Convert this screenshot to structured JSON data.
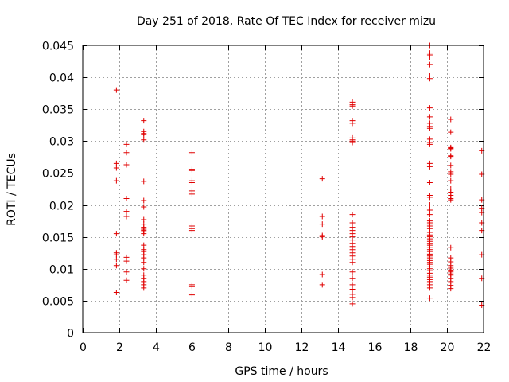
{
  "chart_data": {
    "type": "scatter",
    "title": "Day 251 of 2018, Rate Of TEC Index for receiver mizu",
    "xlabel": "GPS time / hours",
    "ylabel": "ROTI / TECUs",
    "xlim": [
      0,
      22
    ],
    "ylim": [
      0,
      0.045
    ],
    "xticks": [
      0,
      2,
      4,
      6,
      8,
      10,
      12,
      14,
      16,
      18,
      20,
      22
    ],
    "yticks": [
      0,
      0.005,
      0.01,
      0.015,
      0.02,
      0.025,
      0.03,
      0.035,
      0.04,
      0.045
    ],
    "xtick_labels": [
      "0",
      "2",
      "4",
      "6",
      "8",
      "10",
      "12",
      "14",
      "16",
      "18",
      "20",
      "22"
    ],
    "ytick_labels": [
      "0",
      "0.005",
      "0.01",
      "0.015",
      "0.02",
      "0.025",
      "0.03",
      "0.035",
      "0.04",
      "0.045"
    ],
    "grid": true,
    "marker": "plus",
    "color": "#e00000",
    "series": [
      {
        "name": "ROTI",
        "points": [
          [
            1.85,
            0.038
          ],
          [
            1.85,
            0.0265
          ],
          [
            1.85,
            0.0258
          ],
          [
            1.85,
            0.0238
          ],
          [
            1.85,
            0.0155
          ],
          [
            1.85,
            0.0125
          ],
          [
            1.85,
            0.0122
          ],
          [
            1.85,
            0.0115
          ],
          [
            1.85,
            0.0105
          ],
          [
            1.85,
            0.0063
          ],
          [
            2.4,
            0.0295
          ],
          [
            2.4,
            0.0282
          ],
          [
            2.4,
            0.0263
          ],
          [
            2.4,
            0.021
          ],
          [
            2.4,
            0.019
          ],
          [
            2.4,
            0.0182
          ],
          [
            2.4,
            0.0118
          ],
          [
            2.4,
            0.0112
          ],
          [
            2.4,
            0.0095
          ],
          [
            2.4,
            0.0082
          ],
          [
            3.35,
            0.0332
          ],
          [
            3.35,
            0.0315
          ],
          [
            3.35,
            0.0312
          ],
          [
            3.35,
            0.031
          ],
          [
            3.35,
            0.0302
          ],
          [
            3.35,
            0.0237
          ],
          [
            3.35,
            0.0207
          ],
          [
            3.35,
            0.0197
          ],
          [
            3.35,
            0.0177
          ],
          [
            3.35,
            0.017
          ],
          [
            3.35,
            0.0165
          ],
          [
            3.35,
            0.0162
          ],
          [
            3.35,
            0.016
          ],
          [
            3.35,
            0.0158
          ],
          [
            3.35,
            0.0155
          ],
          [
            3.35,
            0.0137
          ],
          [
            3.35,
            0.013
          ],
          [
            3.35,
            0.0127
          ],
          [
            3.35,
            0.0122
          ],
          [
            3.35,
            0.0117
          ],
          [
            3.35,
            0.011
          ],
          [
            3.35,
            0.01
          ],
          [
            3.35,
            0.009
          ],
          [
            3.35,
            0.0085
          ],
          [
            3.35,
            0.008
          ],
          [
            3.35,
            0.0075
          ],
          [
            3.35,
            0.007
          ],
          [
            6.0,
            0.0282
          ],
          [
            6.0,
            0.0256
          ],
          [
            6.0,
            0.0254
          ],
          [
            6.0,
            0.0238
          ],
          [
            6.0,
            0.0235
          ],
          [
            6.0,
            0.0222
          ],
          [
            6.0,
            0.0217
          ],
          [
            6.0,
            0.0167
          ],
          [
            6.0,
            0.0163
          ],
          [
            6.0,
            0.016
          ],
          [
            6.0,
            0.0075
          ],
          [
            6.0,
            0.0073
          ],
          [
            6.0,
            0.0072
          ],
          [
            6.0,
            0.0059
          ],
          [
            13.15,
            0.0241
          ],
          [
            13.15,
            0.0182
          ],
          [
            13.15,
            0.017
          ],
          [
            13.15,
            0.0152
          ],
          [
            13.15,
            0.015
          ],
          [
            13.15,
            0.0091
          ],
          [
            13.15,
            0.0075
          ],
          [
            14.8,
            0.0361
          ],
          [
            14.8,
            0.0357
          ],
          [
            14.8,
            0.0355
          ],
          [
            14.8,
            0.0332
          ],
          [
            14.8,
            0.0328
          ],
          [
            14.8,
            0.0305
          ],
          [
            14.8,
            0.0302
          ],
          [
            14.8,
            0.03
          ],
          [
            14.8,
            0.0298
          ],
          [
            14.8,
            0.0185
          ],
          [
            14.8,
            0.0172
          ],
          [
            14.8,
            0.0165
          ],
          [
            14.8,
            0.016
          ],
          [
            14.8,
            0.0155
          ],
          [
            14.8,
            0.015
          ],
          [
            14.8,
            0.0145
          ],
          [
            14.8,
            0.014
          ],
          [
            14.8,
            0.0135
          ],
          [
            14.8,
            0.013
          ],
          [
            14.8,
            0.0125
          ],
          [
            14.8,
            0.012
          ],
          [
            14.8,
            0.0115
          ],
          [
            14.8,
            0.011
          ],
          [
            14.8,
            0.0095
          ],
          [
            14.8,
            0.0085
          ],
          [
            14.8,
            0.0075
          ],
          [
            14.8,
            0.0068
          ],
          [
            14.8,
            0.006
          ],
          [
            14.8,
            0.0055
          ],
          [
            14.8,
            0.0045
          ],
          [
            19.05,
            0.045
          ],
          [
            19.05,
            0.0438
          ],
          [
            19.05,
            0.0435
          ],
          [
            19.05,
            0.0432
          ],
          [
            19.05,
            0.042
          ],
          [
            19.05,
            0.0402
          ],
          [
            19.05,
            0.0398
          ],
          [
            19.05,
            0.0352
          ],
          [
            19.05,
            0.0338
          ],
          [
            19.05,
            0.0328
          ],
          [
            19.05,
            0.0323
          ],
          [
            19.05,
            0.032
          ],
          [
            19.05,
            0.0303
          ],
          [
            19.05,
            0.0298
          ],
          [
            19.05,
            0.0295
          ],
          [
            19.05,
            0.0265
          ],
          [
            19.05,
            0.026
          ],
          [
            19.05,
            0.0235
          ],
          [
            19.05,
            0.0215
          ],
          [
            19.05,
            0.0212
          ],
          [
            19.05,
            0.02
          ],
          [
            19.05,
            0.0192
          ],
          [
            19.05,
            0.0185
          ],
          [
            19.05,
            0.0175
          ],
          [
            19.05,
            0.0172
          ],
          [
            19.05,
            0.017
          ],
          [
            19.05,
            0.0167
          ],
          [
            19.05,
            0.0163
          ],
          [
            19.05,
            0.0157
          ],
          [
            19.05,
            0.0153
          ],
          [
            19.05,
            0.015
          ],
          [
            19.05,
            0.0147
          ],
          [
            19.05,
            0.0143
          ],
          [
            19.05,
            0.014
          ],
          [
            19.05,
            0.0137
          ],
          [
            19.05,
            0.0133
          ],
          [
            19.05,
            0.013
          ],
          [
            19.05,
            0.0127
          ],
          [
            19.05,
            0.0123
          ],
          [
            19.05,
            0.012
          ],
          [
            19.05,
            0.0117
          ],
          [
            19.05,
            0.0113
          ],
          [
            19.05,
            0.011
          ],
          [
            19.05,
            0.0107
          ],
          [
            19.05,
            0.0103
          ],
          [
            19.05,
            0.01
          ],
          [
            19.05,
            0.0097
          ],
          [
            19.05,
            0.0093
          ],
          [
            19.05,
            0.009
          ],
          [
            19.05,
            0.0087
          ],
          [
            19.05,
            0.0083
          ],
          [
            19.05,
            0.008
          ],
          [
            19.05,
            0.0075
          ],
          [
            19.05,
            0.007
          ],
          [
            19.05,
            0.0054
          ],
          [
            20.2,
            0.0334
          ],
          [
            20.2,
            0.0314
          ],
          [
            20.2,
            0.029
          ],
          [
            20.2,
            0.0289
          ],
          [
            20.2,
            0.0288
          ],
          [
            20.2,
            0.0277
          ],
          [
            20.2,
            0.0276
          ],
          [
            20.2,
            0.0262
          ],
          [
            20.2,
            0.0252
          ],
          [
            20.2,
            0.0248
          ],
          [
            20.2,
            0.0238
          ],
          [
            20.2,
            0.0225
          ],
          [
            20.2,
            0.022
          ],
          [
            20.2,
            0.0215
          ],
          [
            20.2,
            0.021
          ],
          [
            20.2,
            0.0208
          ],
          [
            20.2,
            0.0133
          ],
          [
            20.2,
            0.0117
          ],
          [
            20.2,
            0.0111
          ],
          [
            20.2,
            0.0105
          ],
          [
            20.2,
            0.0101
          ],
          [
            20.2,
            0.0098
          ],
          [
            20.2,
            0.0095
          ],
          [
            20.2,
            0.0092
          ],
          [
            20.2,
            0.009
          ],
          [
            20.2,
            0.0085
          ],
          [
            20.2,
            0.008
          ],
          [
            20.2,
            0.0074
          ],
          [
            20.2,
            0.0069
          ],
          [
            21.9,
            0.0285
          ],
          [
            21.9,
            0.0248
          ],
          [
            21.9,
            0.0208
          ],
          [
            21.9,
            0.0195
          ],
          [
            21.9,
            0.0188
          ],
          [
            21.9,
            0.0172
          ],
          [
            21.9,
            0.016
          ],
          [
            21.9,
            0.0122
          ],
          [
            21.9,
            0.0085
          ],
          [
            21.9,
            0.0043
          ]
        ]
      }
    ]
  }
}
